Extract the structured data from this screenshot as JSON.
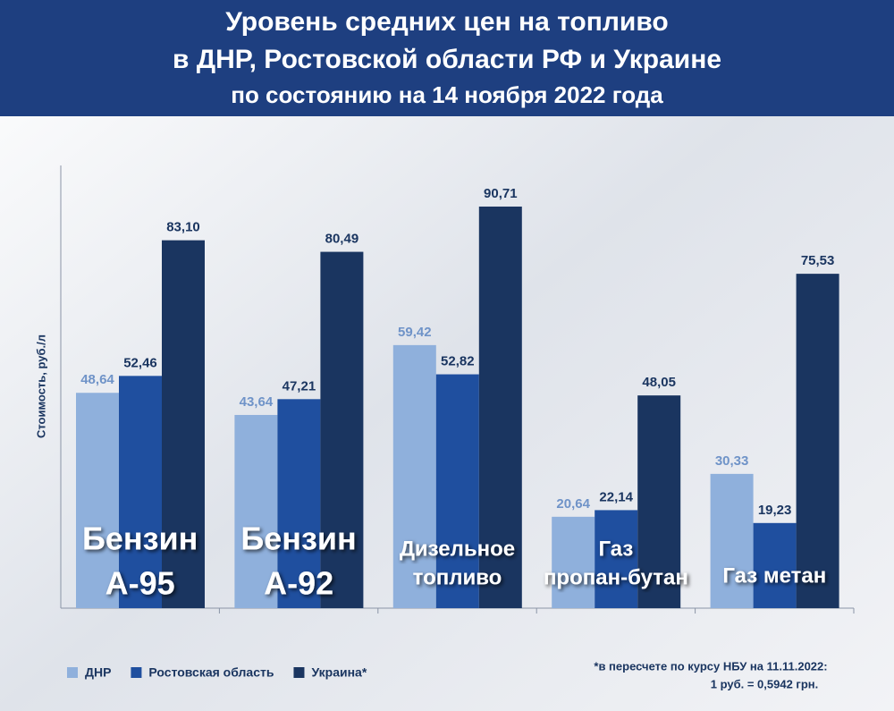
{
  "chart_data": {
    "type": "bar",
    "title": [
      "Уровень средних цен на топливо",
      "в ДНР, Ростовской области РФ и Украине",
      "по состоянию на 14 ноября 2022 года"
    ],
    "y_label": "Стоимость,  руб./л",
    "categories": [
      [
        "Бензин",
        "А-95"
      ],
      [
        "Бензин",
        "А-92"
      ],
      [
        "Дизельное",
        "топливо"
      ],
      [
        "Газ",
        "пропан-бутан"
      ],
      [
        "Газ метан"
      ]
    ],
    "series": [
      {
        "name": "ДНР",
        "color": "#8fb0dc",
        "values": [
          48.64,
          43.64,
          59.42,
          20.64,
          30.33
        ],
        "value_labels": [
          "48,64",
          "43,64",
          "59,42",
          "20,64",
          "30,33"
        ]
      },
      {
        "name": "Ростовская область",
        "color": "#1f4f9f",
        "values": [
          52.46,
          47.21,
          52.82,
          22.14,
          19.23
        ],
        "value_labels": [
          "52,46",
          "47,21",
          "52,82",
          "22,14",
          "19,23"
        ]
      },
      {
        "name": "Украина*",
        "color": "#1a3560",
        "values": [
          83.1,
          80.49,
          90.71,
          48.05,
          75.53
        ],
        "value_labels": [
          "83,10",
          "80,49",
          "90,71",
          "48,05",
          "75,53"
        ]
      }
    ],
    "ylim": [
      0,
      100
    ],
    "note": [
      "*в пересчете по курсу НБУ на 11.11.2022:",
      "1 руб. = 0,5942 грн."
    ]
  }
}
